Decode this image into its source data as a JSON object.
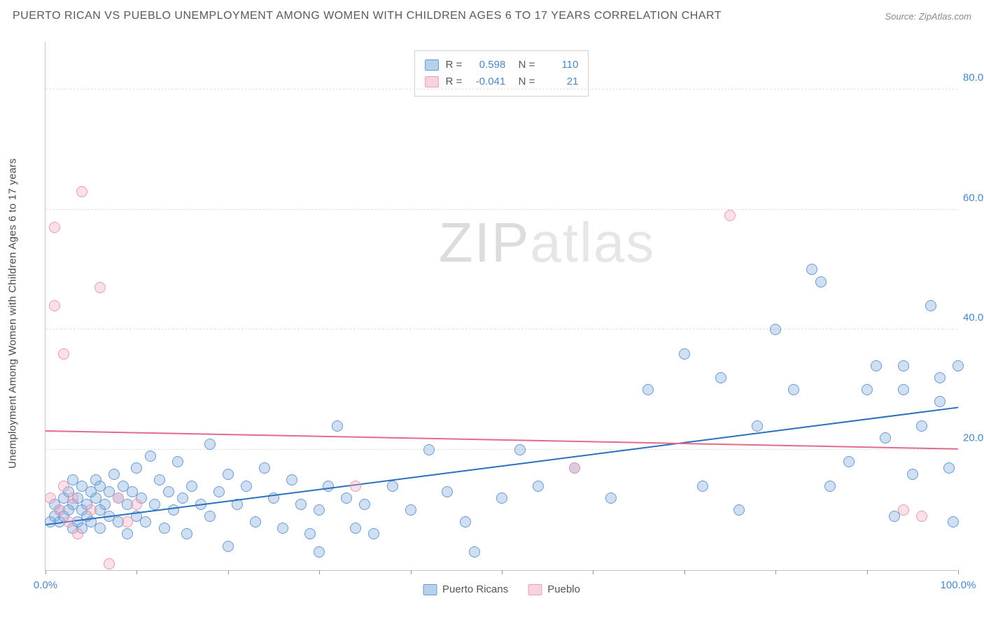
{
  "title": "PUERTO RICAN VS PUEBLO UNEMPLOYMENT AMONG WOMEN WITH CHILDREN AGES 6 TO 17 YEARS CORRELATION CHART",
  "source": "Source: ZipAtlas.com",
  "y_axis_label": "Unemployment Among Women with Children Ages 6 to 17 years",
  "watermark_a": "ZIP",
  "watermark_b": "atlas",
  "chart": {
    "type": "scatter",
    "background_color": "#ffffff",
    "grid_color": "#e0e0e0",
    "axis_color": "#c4c4c4",
    "xlim": [
      0,
      100
    ],
    "ylim": [
      0,
      88
    ],
    "x_ticks": [
      0,
      10,
      20,
      30,
      40,
      50,
      60,
      70,
      80,
      90,
      100
    ],
    "x_tick_labels": {
      "0": "0.0%",
      "100": "100.0%"
    },
    "y_ticks": [
      20,
      40,
      60,
      80
    ],
    "y_tick_labels": {
      "20": "20.0%",
      "40": "40.0%",
      "60": "60.0%",
      "80": "80.0%"
    },
    "title_fontsize": 16,
    "label_fontsize": 15,
    "tick_fontsize": 15,
    "tick_color": "#4a86c9",
    "marker_radius": 8,
    "marker_stroke_width": 1.5,
    "series": [
      {
        "name": "Puerto Ricans",
        "fill": "rgba(120,164,216,0.35)",
        "stroke": "#6a9bd4",
        "legend_fill": "#b9d0ec",
        "legend_stroke": "#6a9bd4",
        "R": "0.598",
        "N": "110",
        "trend": {
          "x1": 0,
          "y1": 7.5,
          "x2": 100,
          "y2": 27.0,
          "color": "#2b6fbf",
          "width": 2
        },
        "points": [
          [
            0.5,
            8
          ],
          [
            1,
            9
          ],
          [
            1,
            11
          ],
          [
            1.5,
            10
          ],
          [
            1.5,
            8
          ],
          [
            2,
            12
          ],
          [
            2,
            9
          ],
          [
            2.5,
            10
          ],
          [
            2.5,
            13
          ],
          [
            3,
            11
          ],
          [
            3,
            7
          ],
          [
            3,
            15
          ],
          [
            3.5,
            8
          ],
          [
            3.5,
            12
          ],
          [
            4,
            10
          ],
          [
            4,
            14
          ],
          [
            4,
            7
          ],
          [
            4.5,
            11
          ],
          [
            4.5,
            9
          ],
          [
            5,
            13
          ],
          [
            5,
            8
          ],
          [
            5.5,
            12
          ],
          [
            5.5,
            15
          ],
          [
            6,
            10
          ],
          [
            6,
            14
          ],
          [
            6,
            7
          ],
          [
            6.5,
            11
          ],
          [
            7,
            13
          ],
          [
            7,
            9
          ],
          [
            7.5,
            16
          ],
          [
            8,
            12
          ],
          [
            8,
            8
          ],
          [
            8.5,
            14
          ],
          [
            9,
            11
          ],
          [
            9,
            6
          ],
          [
            9.5,
            13
          ],
          [
            10,
            9
          ],
          [
            10,
            17
          ],
          [
            10.5,
            12
          ],
          [
            11,
            8
          ],
          [
            11.5,
            19
          ],
          [
            12,
            11
          ],
          [
            12.5,
            15
          ],
          [
            13,
            7
          ],
          [
            13.5,
            13
          ],
          [
            14,
            10
          ],
          [
            14.5,
            18
          ],
          [
            15,
            12
          ],
          [
            15.5,
            6
          ],
          [
            16,
            14
          ],
          [
            17,
            11
          ],
          [
            18,
            9
          ],
          [
            18,
            21
          ],
          [
            19,
            13
          ],
          [
            20,
            16
          ],
          [
            20,
            4
          ],
          [
            21,
            11
          ],
          [
            22,
            14
          ],
          [
            23,
            8
          ],
          [
            24,
            17
          ],
          [
            25,
            12
          ],
          [
            26,
            7
          ],
          [
            27,
            15
          ],
          [
            28,
            11
          ],
          [
            29,
            6
          ],
          [
            30,
            10
          ],
          [
            30,
            3
          ],
          [
            31,
            14
          ],
          [
            32,
            24
          ],
          [
            33,
            12
          ],
          [
            34,
            7
          ],
          [
            35,
            11
          ],
          [
            36,
            6
          ],
          [
            38,
            14
          ],
          [
            40,
            10
          ],
          [
            42,
            20
          ],
          [
            44,
            13
          ],
          [
            46,
            8
          ],
          [
            47,
            3
          ],
          [
            50,
            12
          ],
          [
            52,
            20
          ],
          [
            54,
            14
          ],
          [
            58,
            17
          ],
          [
            62,
            12
          ],
          [
            66,
            30
          ],
          [
            70,
            36
          ],
          [
            72,
            14
          ],
          [
            74,
            32
          ],
          [
            76,
            10
          ],
          [
            78,
            24
          ],
          [
            80,
            40
          ],
          [
            82,
            30
          ],
          [
            84,
            50
          ],
          [
            85,
            48
          ],
          [
            86,
            14
          ],
          [
            88,
            18
          ],
          [
            90,
            30
          ],
          [
            91,
            34
          ],
          [
            92,
            22
          ],
          [
            93,
            9
          ],
          [
            94,
            34
          ],
          [
            94,
            30
          ],
          [
            95,
            16
          ],
          [
            96,
            24
          ],
          [
            97,
            44
          ],
          [
            98,
            32
          ],
          [
            98,
            28
          ],
          [
            99,
            17
          ],
          [
            99.5,
            8
          ],
          [
            100,
            34
          ]
        ]
      },
      {
        "name": "Pueblo",
        "fill": "rgba(240,170,190,0.35)",
        "stroke": "#e79bb2",
        "legend_fill": "#f7d3de",
        "legend_stroke": "#ea9fb6",
        "R": "-0.041",
        "N": "21",
        "trend": {
          "x1": 0,
          "y1": 23.0,
          "x2": 100,
          "y2": 20.0,
          "color": "#e26b8f",
          "width": 2
        },
        "points": [
          [
            0.5,
            12
          ],
          [
            1,
            57
          ],
          [
            1,
            44
          ],
          [
            1.5,
            10
          ],
          [
            2,
            36
          ],
          [
            2,
            14
          ],
          [
            2.5,
            8
          ],
          [
            3,
            12
          ],
          [
            3.5,
            6
          ],
          [
            4,
            63
          ],
          [
            5,
            10
          ],
          [
            6,
            47
          ],
          [
            7,
            1
          ],
          [
            8,
            12
          ],
          [
            9,
            8
          ],
          [
            10,
            11
          ],
          [
            34,
            14
          ],
          [
            58,
            17
          ],
          [
            75,
            59
          ],
          [
            94,
            10
          ],
          [
            96,
            9
          ]
        ]
      }
    ],
    "bottom_legend": [
      {
        "label": "Puerto Ricans",
        "fill": "#b9d0ec",
        "stroke": "#6a9bd4"
      },
      {
        "label": "Pueblo",
        "fill": "#f7d3de",
        "stroke": "#ea9fb6"
      }
    ]
  }
}
